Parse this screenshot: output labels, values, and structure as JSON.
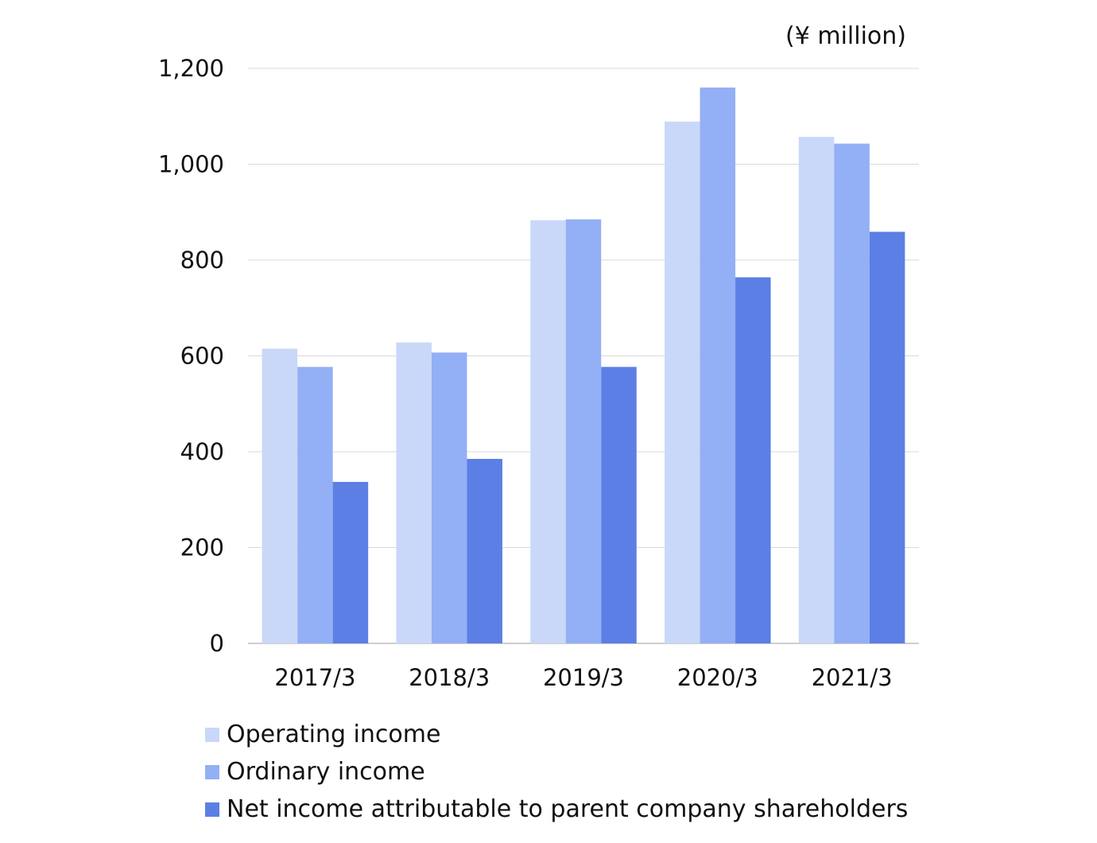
{
  "chart_data": {
    "type": "bar",
    "unit_label": "(¥ million)",
    "categories": [
      "2017/3",
      "2018/3",
      "2019/3",
      "2020/3",
      "2021/3"
    ],
    "series": [
      {
        "name": "Operating income",
        "color": "#c9d8f8",
        "values": [
          615,
          628,
          883,
          1089,
          1057
        ]
      },
      {
        "name": "Ordinary income",
        "color": "#93aff5",
        "values": [
          577,
          607,
          885,
          1160,
          1043
        ]
      },
      {
        "name": "Net income attributable to parent company shareholders",
        "color": "#5b7fe4",
        "values": [
          337,
          385,
          577,
          764,
          859
        ]
      }
    ],
    "ylim": [
      0,
      1200
    ],
    "yticks": [
      0,
      200,
      400,
      600,
      800,
      1000,
      1200
    ],
    "ytick_labels": [
      "0",
      "200",
      "400",
      "600",
      "800",
      "1,000",
      "1,200"
    ],
    "grid": true,
    "legend_position": "bottom-left"
  }
}
